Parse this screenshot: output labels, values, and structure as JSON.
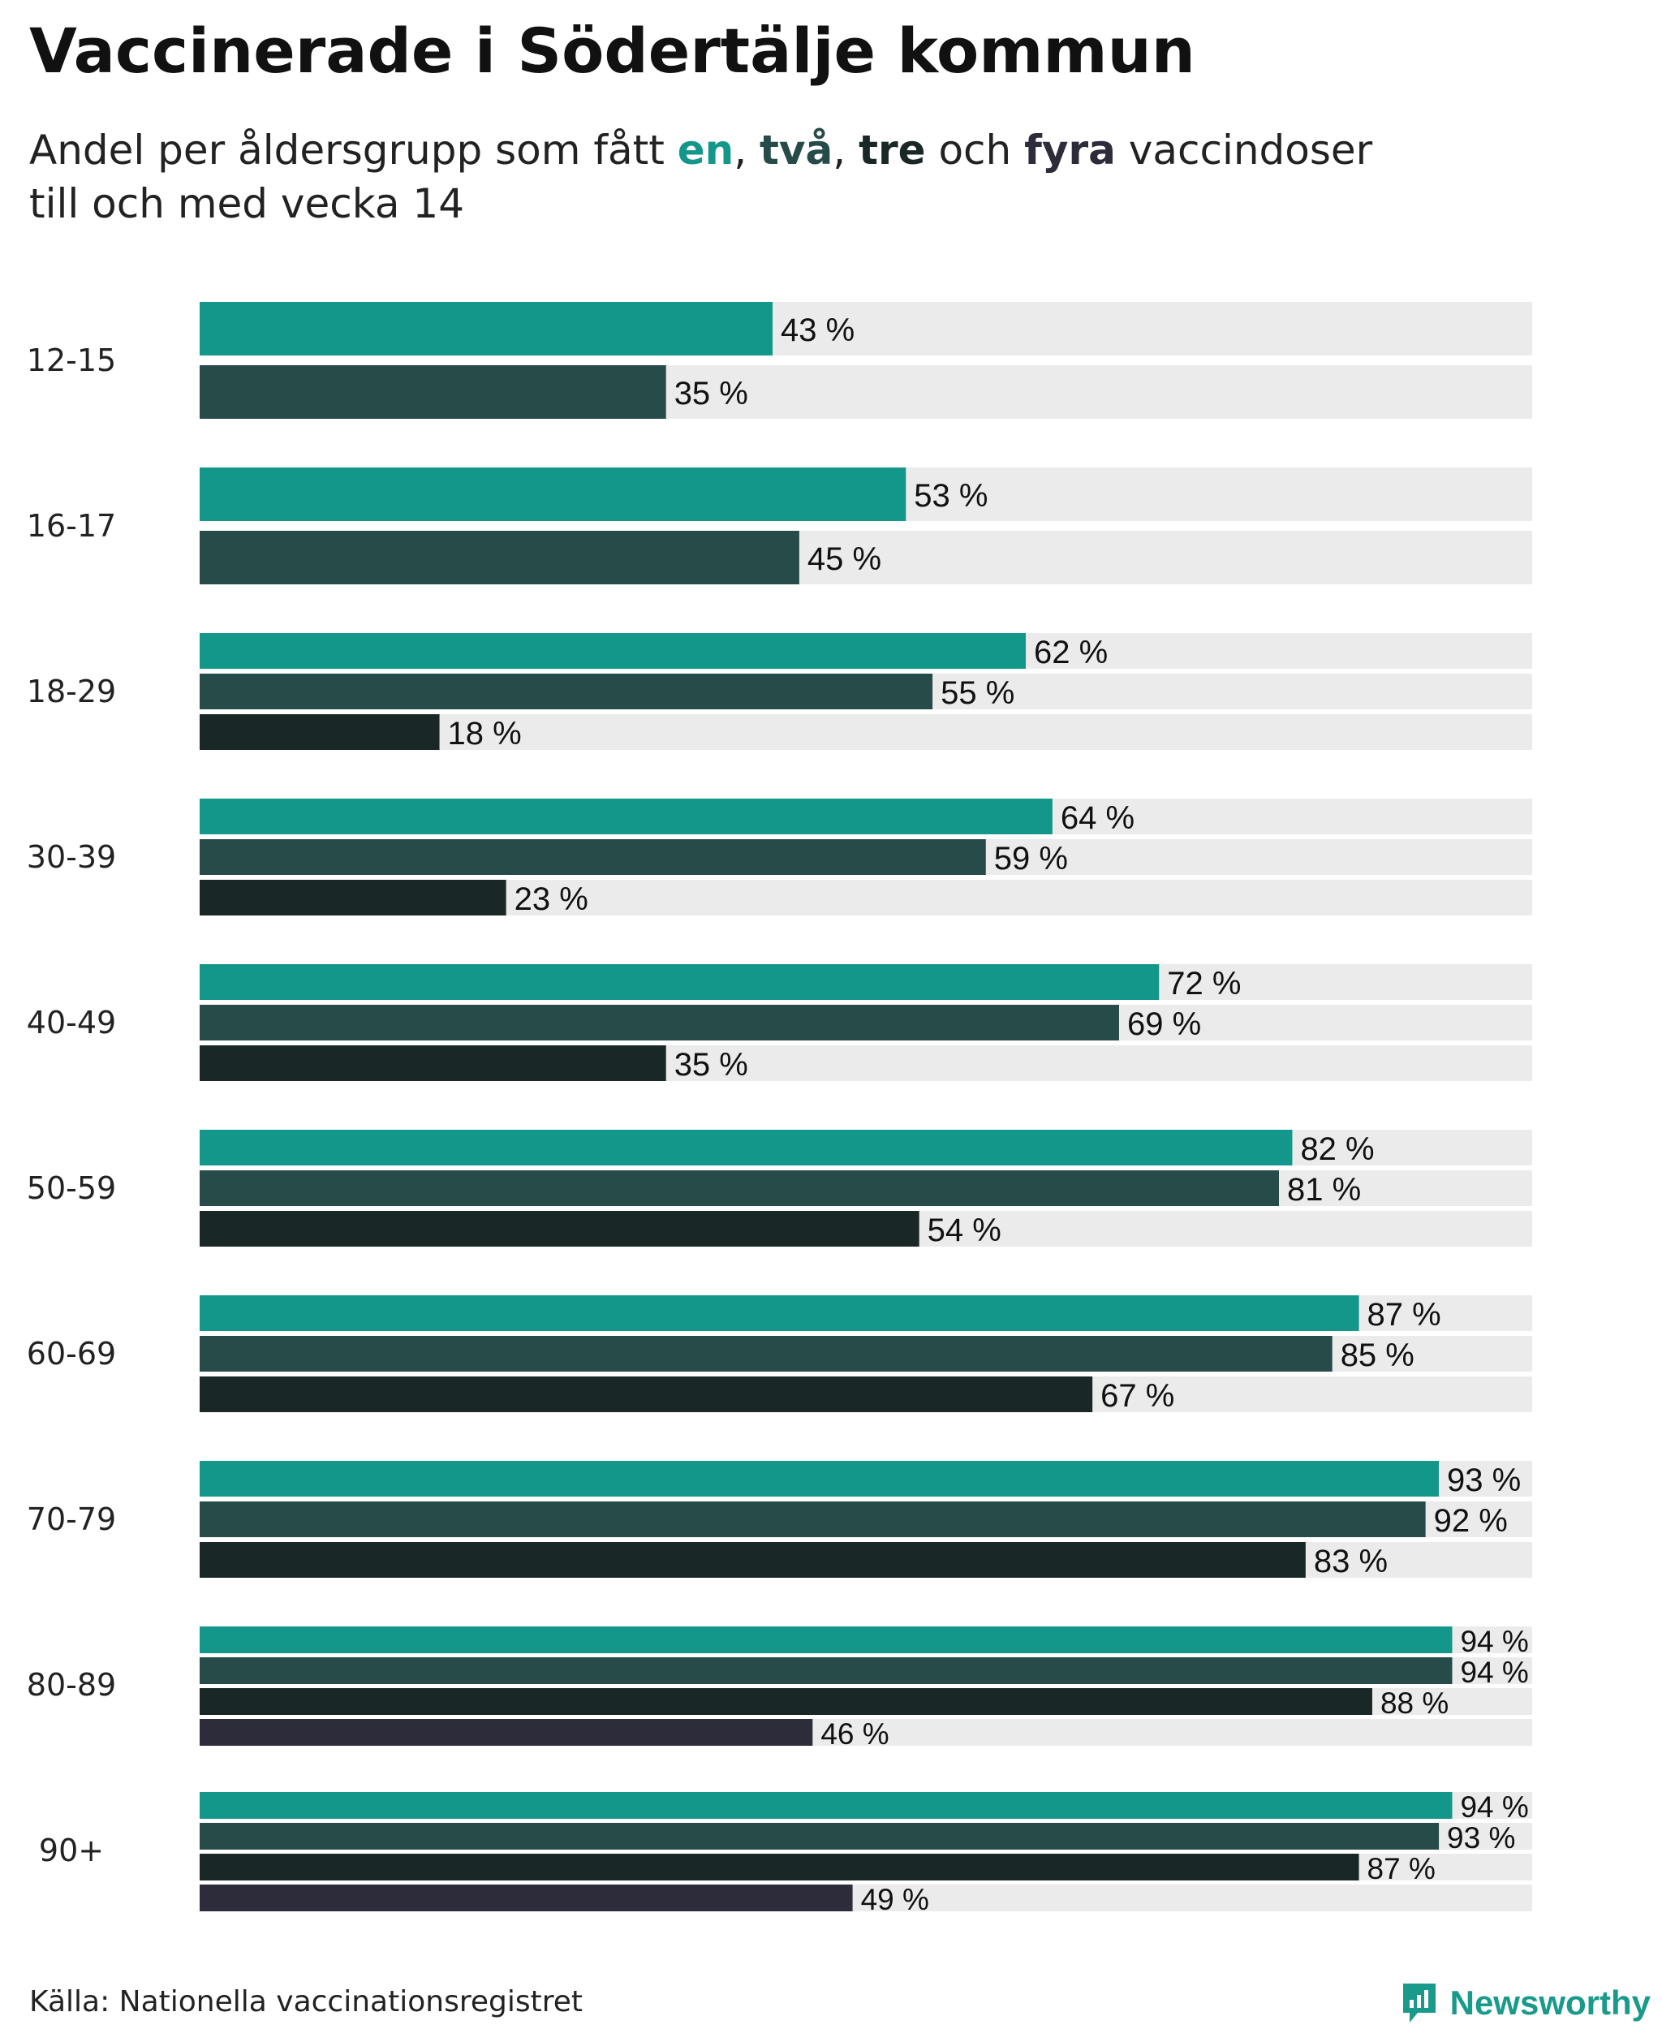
{
  "title": "Vaccinerade i Södertälje kommun",
  "subtitle": {
    "prefix": "Andel per åldersgrupp som fått ",
    "dose1": "en",
    "sep1": ", ",
    "dose2": "två",
    "sep2": ", ",
    "dose3": "tre",
    "mid": " och ",
    "dose4": "fyra",
    "suffix": " vaccindoser",
    "line2": "till och med vecka 14"
  },
  "source": "Källa: Nationella vaccinationsregistret",
  "brand": {
    "name": "Newsworthy",
    "icon": "newsworthy-logo-icon"
  },
  "colors": {
    "dose1": "#12978a",
    "dose2": "#264b48",
    "dose3": "#192826",
    "dose4": "#2d2c3a",
    "track": "#ebebeb"
  },
  "chart_data": {
    "type": "bar",
    "orientation": "horizontal",
    "title": "Vaccinerade i Södertälje kommun",
    "xlabel": "",
    "ylabel": "",
    "xlim": [
      0,
      100
    ],
    "unit": " %",
    "grid": false,
    "categories": [
      "12-15",
      "16-17",
      "18-29",
      "30-39",
      "40-49",
      "50-59",
      "60-69",
      "70-79",
      "80-89",
      "90+"
    ],
    "series": [
      {
        "name": "en",
        "values": [
          43,
          53,
          62,
          64,
          72,
          82,
          87,
          93,
          94,
          94
        ]
      },
      {
        "name": "två",
        "values": [
          35,
          45,
          55,
          59,
          69,
          81,
          85,
          92,
          94,
          93
        ]
      },
      {
        "name": "tre",
        "values": [
          null,
          null,
          18,
          23,
          35,
          54,
          67,
          83,
          88,
          87
        ]
      },
      {
        "name": "fyra",
        "values": [
          null,
          null,
          null,
          null,
          null,
          null,
          null,
          null,
          46,
          49
        ]
      }
    ]
  }
}
